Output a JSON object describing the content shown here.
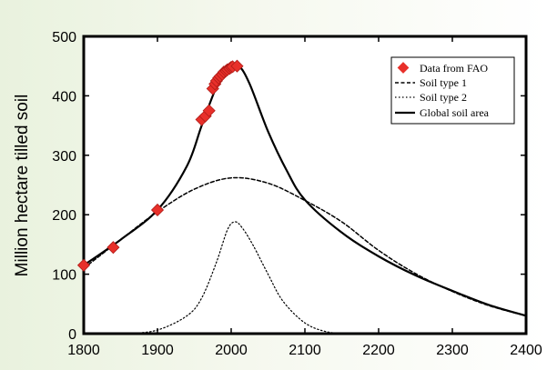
{
  "chart_data": {
    "type": "line",
    "ylabel": "Million hectare tilled soil",
    "xlim": [
      1800,
      2400
    ],
    "ylim": [
      0,
      500
    ],
    "x_ticks": [
      1800,
      1900,
      2000,
      2100,
      2200,
      2300,
      2400
    ],
    "y_ticks": [
      0,
      100,
      200,
      300,
      400,
      500
    ],
    "grid": false,
    "legend_position": "top-right",
    "legend": [
      "Data from FAO",
      "Soil type 1",
      "Soil type 2",
      "Global soil area"
    ],
    "scatter": {
      "name": "Data from FAO",
      "color": "#e8302a",
      "x": [
        1800,
        1840,
        1900,
        1960,
        1965,
        1970,
        1975,
        1978,
        1980,
        1983,
        1985,
        1988,
        1990,
        1993,
        1995,
        1998,
        2000,
        2002,
        2008
      ],
      "y": [
        115,
        145,
        208,
        360,
        366,
        375,
        412,
        420,
        425,
        430,
        433,
        436,
        440,
        442,
        444,
        446,
        448,
        449,
        450
      ]
    },
    "series": [
      {
        "name": "Soil type 1",
        "style": "dashed",
        "x": [
          1800,
          1850,
          1900,
          1950,
          2000,
          2050,
          2100,
          2150,
          2200,
          2250,
          2300,
          2350,
          2400
        ],
        "y": [
          110,
          158,
          205,
          243,
          262,
          253,
          224,
          188,
          140,
          101,
          71,
          47,
          30
        ]
      },
      {
        "name": "Soil type 2",
        "style": "dotted",
        "x": [
          1860,
          1900,
          1940,
          1960,
          1980,
          1995,
          2005,
          2015,
          2030,
          2050,
          2070,
          2100,
          2130,
          2160
        ],
        "y": [
          0,
          6,
          30,
          60,
          120,
          175,
          188,
          178,
          148,
          100,
          55,
          18,
          3,
          0
        ]
      },
      {
        "name": "Global soil area",
        "style": "solid",
        "x": [
          1800,
          1850,
          1900,
          1940,
          1960,
          1980,
          1995,
          2010,
          2025,
          2050,
          2075,
          2100,
          2150,
          2200,
          2250,
          2300,
          2350,
          2400
        ],
        "y": [
          115,
          158,
          208,
          282,
          350,
          415,
          445,
          450,
          420,
          340,
          275,
          225,
          170,
          130,
          98,
          72,
          48,
          30
        ]
      }
    ]
  }
}
